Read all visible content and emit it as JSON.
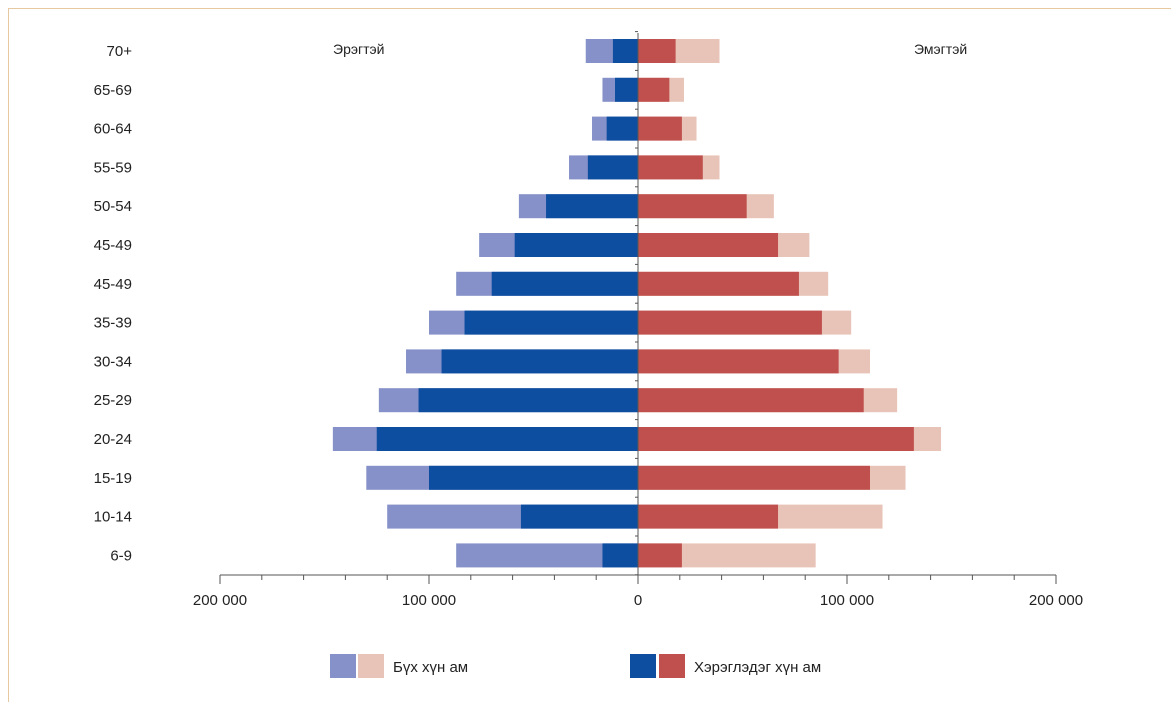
{
  "chart_data": {
    "type": "bar",
    "orientation": "horizontal",
    "layout": "population-pyramid",
    "categories": [
      "70+",
      "65-69",
      "60-64",
      "55-59",
      "50-54",
      "45-49",
      "45-49",
      "35-39",
      "30-34",
      "25-29",
      "20-24",
      "15-19",
      "10-14",
      "6-9"
    ],
    "side_labels": {
      "left": "Эрэгтэй",
      "right": "Эмэгтэй"
    },
    "xlim": [
      -200000,
      200000
    ],
    "x_ticks": [
      -200000,
      -100000,
      0,
      100000,
      200000
    ],
    "x_tick_labels": [
      "200 000",
      "100 000",
      "0",
      "100 000",
      "200 000"
    ],
    "series": [
      {
        "name": "Бүх хүн ам",
        "male": [
          25000,
          17000,
          22000,
          33000,
          57000,
          76000,
          87000,
          100000,
          111000,
          124000,
          146000,
          130000,
          120000,
          87000
        ],
        "female": [
          39000,
          22000,
          28000,
          39000,
          65000,
          82000,
          91000,
          102000,
          111000,
          124000,
          145000,
          128000,
          117000,
          85000
        ]
      },
      {
        "name": "Хэрэглэдэг хүн ам",
        "male": [
          12000,
          11000,
          15000,
          24000,
          44000,
          59000,
          70000,
          83000,
          94000,
          105000,
          125000,
          100000,
          56000,
          17000
        ],
        "female": [
          18000,
          15000,
          21000,
          31000,
          52000,
          67000,
          77000,
          88000,
          96000,
          108000,
          132000,
          111000,
          67000,
          21000
        ]
      }
    ],
    "colors": {
      "male_total": "#8591c8",
      "male_users": "#0d4ea1",
      "female_total": "#e8c4b8",
      "female_users": "#c0504d",
      "axis": "#555555"
    },
    "grid": false,
    "legend_placement": "bottom-center"
  }
}
